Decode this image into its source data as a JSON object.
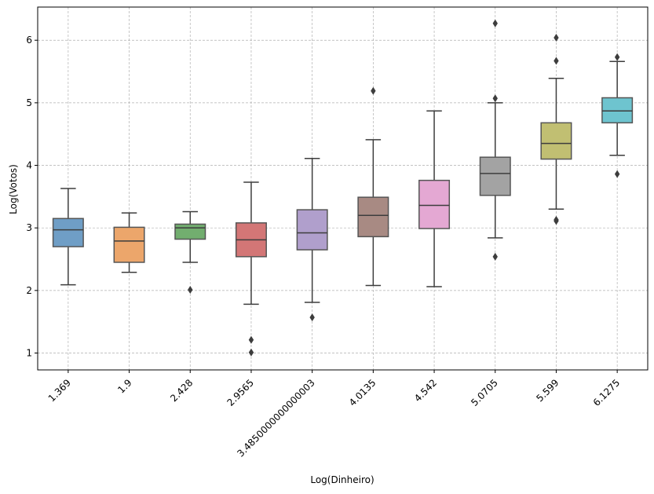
{
  "chart_data": {
    "type": "box",
    "title": "",
    "xlabel": "Log(Dinheiro)",
    "ylabel": "Log(Votos)",
    "ylim": [
      0.73,
      6.53
    ],
    "yticks": [
      1,
      2,
      3,
      4,
      5,
      6
    ],
    "grid": true,
    "categories": [
      "1.369",
      "1.9",
      "2.428",
      "2.9565",
      "3.4850000000000003",
      "4.0135",
      "4.542",
      "5.0705",
      "5.599",
      "6.1275"
    ],
    "boxes": [
      {
        "category": "1.369",
        "color": "#6f9ec6",
        "whisker_low": 2.09,
        "q1": 2.7,
        "median": 2.97,
        "q3": 3.15,
        "whisker_high": 3.63,
        "outliers": []
      },
      {
        "category": "1.9",
        "color": "#eca66b",
        "whisker_low": 2.29,
        "q1": 2.45,
        "median": 2.79,
        "q3": 3.01,
        "whisker_high": 3.24,
        "outliers": []
      },
      {
        "category": "2.428",
        "color": "#72ae6f",
        "whisker_low": 2.45,
        "q1": 2.82,
        "median": 3.0,
        "q3": 3.06,
        "whisker_high": 3.26,
        "outliers": [
          2.01
        ]
      },
      {
        "category": "2.9565",
        "color": "#d37676",
        "whisker_low": 1.78,
        "q1": 2.54,
        "median": 2.81,
        "q3": 3.08,
        "whisker_high": 3.73,
        "outliers": [
          1.21,
          1.01
        ]
      },
      {
        "category": "3.4850000000000003",
        "color": "#b09fcc",
        "whisker_low": 1.81,
        "q1": 2.65,
        "median": 2.92,
        "q3": 3.29,
        "whisker_high": 4.11,
        "outliers": [
          1.57
        ]
      },
      {
        "category": "4.0135",
        "color": "#a88a83",
        "whisker_low": 2.08,
        "q1": 2.86,
        "median": 3.2,
        "q3": 3.49,
        "whisker_high": 4.41,
        "outliers": [
          5.19
        ]
      },
      {
        "category": "4.542",
        "color": "#e4a8d3",
        "whisker_low": 2.06,
        "q1": 2.99,
        "median": 3.36,
        "q3": 3.76,
        "whisker_high": 4.87,
        "outliers": []
      },
      {
        "category": "5.0705",
        "color": "#a3a3a3",
        "whisker_low": 2.84,
        "q1": 3.52,
        "median": 3.87,
        "q3": 4.13,
        "whisker_high": 5.0,
        "outliers": [
          2.54,
          5.07,
          6.27
        ]
      },
      {
        "category": "5.599",
        "color": "#c1bf72",
        "whisker_low": 3.3,
        "q1": 4.1,
        "median": 4.35,
        "q3": 4.68,
        "whisker_high": 5.39,
        "outliers": [
          3.11,
          3.13,
          5.67,
          6.04
        ]
      },
      {
        "category": "6.1275",
        "color": "#6ec4cf",
        "whisker_low": 4.16,
        "q1": 4.68,
        "median": 4.87,
        "q3": 5.08,
        "whisker_high": 5.66,
        "outliers": [
          3.86,
          5.73
        ]
      }
    ]
  }
}
